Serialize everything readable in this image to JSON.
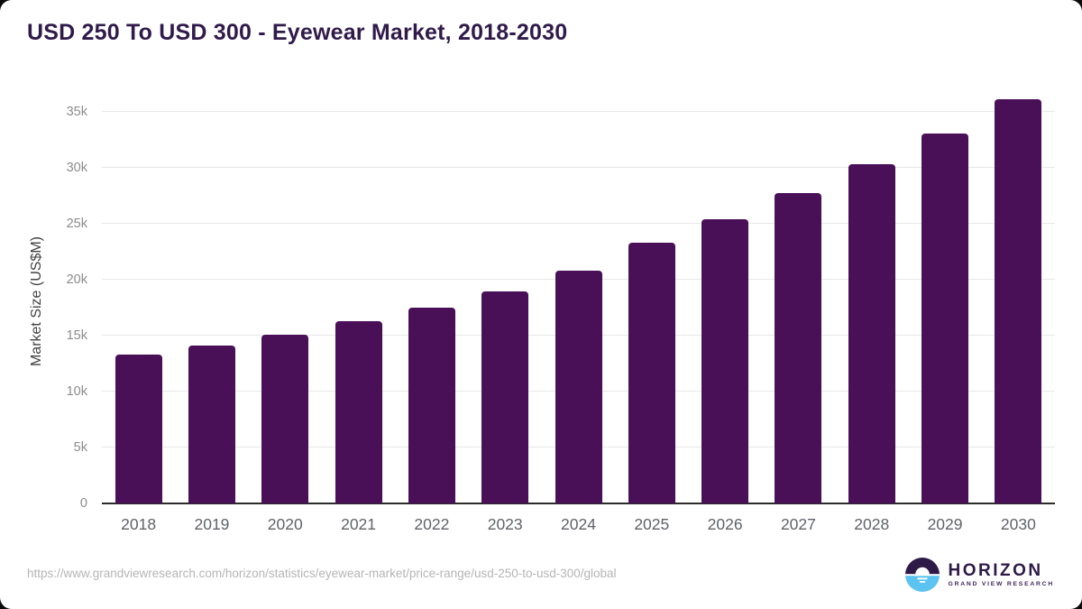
{
  "chart_data": {
    "type": "bar",
    "title": "USD 250 To USD 300 - Eyewear Market, 2018-2030",
    "categories": [
      "2018",
      "2019",
      "2020",
      "2021",
      "2022",
      "2023",
      "2024",
      "2025",
      "2026",
      "2027",
      "2028",
      "2029",
      "2030"
    ],
    "values": [
      13300,
      14100,
      15100,
      16300,
      17500,
      18950,
      20800,
      23250,
      25350,
      27700,
      30250,
      33000,
      36050
    ],
    "xlabel": "",
    "ylabel": "Market Size (US$M)",
    "ylim": [
      0,
      36250
    ],
    "yticks": [
      0,
      5000,
      10000,
      15000,
      20000,
      25000,
      30000,
      35000
    ],
    "ytick_labels": [
      "0",
      "5k",
      "10k",
      "15k",
      "20k",
      "25k",
      "30k",
      "35k"
    ],
    "grid": true,
    "legend": false,
    "bar_color": "#491058"
  },
  "colors": {
    "title": "#301a4a",
    "gridline": "#e7e7e7",
    "baseline": "#2b2b2b",
    "y_tick": "#8c8c8c",
    "x_tick": "#5f6368",
    "url_text": "#b5b5b5",
    "logo_purple": "#2e1a47",
    "logo_blue": "#5ac3ef"
  },
  "footer": {
    "source_url": "https://www.grandviewresearch.com/horizon/statistics/eyewear-market/price-range/usd-250-to-usd-300/global",
    "logo": {
      "name": "HORIZON",
      "subtitle": "GRAND VIEW RESEARCH"
    }
  }
}
